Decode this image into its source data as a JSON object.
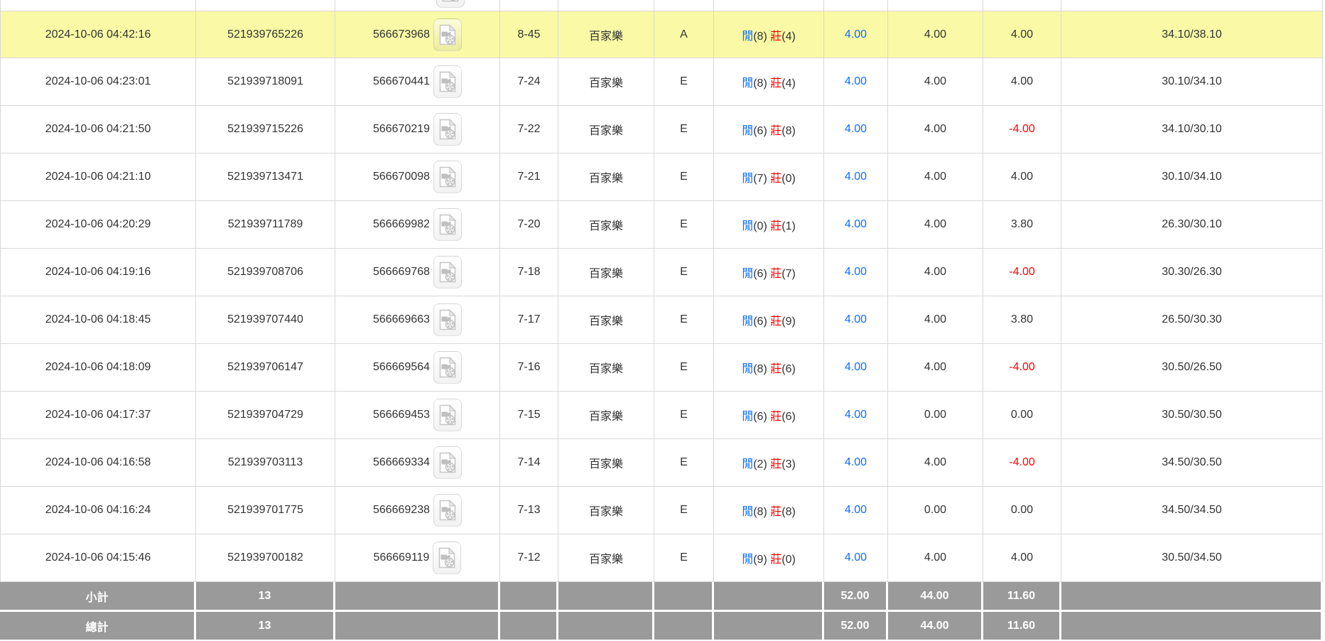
{
  "colors": {
    "highlight_row": "#f9f9a6",
    "summary_bg": "#9a9a9a",
    "row_border": "#d9d9d9",
    "link_blue": "#0d6efd",
    "player_blue": "#0d6efd",
    "banker_red": "#ff0000",
    "negative_red": "#ff0000",
    "text": "#333333"
  },
  "icons": {
    "row_action": "video-file-icon"
  },
  "table": {
    "result_labels": {
      "player": "閒",
      "banker": "莊"
    },
    "game_name": "百家樂",
    "rows": [
      {
        "time": "2024-10-06 04:42:16",
        "bet_id": "521939765226",
        "game_id": "566673968",
        "round": "8-45",
        "game": "百家樂",
        "table_code": "A",
        "player_score": "8",
        "banker_score": "4",
        "bet": "4.00",
        "valid": "4.00",
        "win_loss": "4.00",
        "balance": "34.10/38.10",
        "highlighted": true
      },
      {
        "time": "2024-10-06 04:23:01",
        "bet_id": "521939718091",
        "game_id": "566670441",
        "round": "7-24",
        "game": "百家樂",
        "table_code": "E",
        "player_score": "8",
        "banker_score": "4",
        "bet": "4.00",
        "valid": "4.00",
        "win_loss": "4.00",
        "balance": "30.10/34.10",
        "highlighted": false
      },
      {
        "time": "2024-10-06 04:21:50",
        "bet_id": "521939715226",
        "game_id": "566670219",
        "round": "7-22",
        "game": "百家樂",
        "table_code": "E",
        "player_score": "6",
        "banker_score": "8",
        "bet": "4.00",
        "valid": "4.00",
        "win_loss": "-4.00",
        "balance": "34.10/30.10",
        "highlighted": false
      },
      {
        "time": "2024-10-06 04:21:10",
        "bet_id": "521939713471",
        "game_id": "566670098",
        "round": "7-21",
        "game": "百家樂",
        "table_code": "E",
        "player_score": "7",
        "banker_score": "0",
        "bet": "4.00",
        "valid": "4.00",
        "win_loss": "4.00",
        "balance": "30.10/34.10",
        "highlighted": false
      },
      {
        "time": "2024-10-06 04:20:29",
        "bet_id": "521939711789",
        "game_id": "566669982",
        "round": "7-20",
        "game": "百家樂",
        "table_code": "E",
        "player_score": "0",
        "banker_score": "1",
        "bet": "4.00",
        "valid": "4.00",
        "win_loss": "3.80",
        "balance": "26.30/30.10",
        "highlighted": false
      },
      {
        "time": "2024-10-06 04:19:16",
        "bet_id": "521939708706",
        "game_id": "566669768",
        "round": "7-18",
        "game": "百家樂",
        "table_code": "E",
        "player_score": "6",
        "banker_score": "7",
        "bet": "4.00",
        "valid": "4.00",
        "win_loss": "-4.00",
        "balance": "30.30/26.30",
        "highlighted": false
      },
      {
        "time": "2024-10-06 04:18:45",
        "bet_id": "521939707440",
        "game_id": "566669663",
        "round": "7-17",
        "game": "百家樂",
        "table_code": "E",
        "player_score": "6",
        "banker_score": "9",
        "bet": "4.00",
        "valid": "4.00",
        "win_loss": "3.80",
        "balance": "26.50/30.30",
        "highlighted": false
      },
      {
        "time": "2024-10-06 04:18:09",
        "bet_id": "521939706147",
        "game_id": "566669564",
        "round": "7-16",
        "game": "百家樂",
        "table_code": "E",
        "player_score": "8",
        "banker_score": "6",
        "bet": "4.00",
        "valid": "4.00",
        "win_loss": "-4.00",
        "balance": "30.50/26.50",
        "highlighted": false
      },
      {
        "time": "2024-10-06 04:17:37",
        "bet_id": "521939704729",
        "game_id": "566669453",
        "round": "7-15",
        "game": "百家樂",
        "table_code": "E",
        "player_score": "6",
        "banker_score": "6",
        "bet": "4.00",
        "valid": "0.00",
        "win_loss": "0.00",
        "balance": "30.50/30.50",
        "highlighted": false
      },
      {
        "time": "2024-10-06 04:16:58",
        "bet_id": "521939703113",
        "game_id": "566669334",
        "round": "7-14",
        "game": "百家樂",
        "table_code": "E",
        "player_score": "2",
        "banker_score": "3",
        "bet": "4.00",
        "valid": "4.00",
        "win_loss": "-4.00",
        "balance": "34.50/30.50",
        "highlighted": false
      },
      {
        "time": "2024-10-06 04:16:24",
        "bet_id": "521939701775",
        "game_id": "566669238",
        "round": "7-13",
        "game": "百家樂",
        "table_code": "E",
        "player_score": "8",
        "banker_score": "8",
        "bet": "4.00",
        "valid": "0.00",
        "win_loss": "0.00",
        "balance": "34.50/34.50",
        "highlighted": false
      },
      {
        "time": "2024-10-06 04:15:46",
        "bet_id": "521939700182",
        "game_id": "566669119",
        "round": "7-12",
        "game": "百家樂",
        "table_code": "E",
        "player_score": "9",
        "banker_score": "0",
        "bet": "4.00",
        "valid": "4.00",
        "win_loss": "4.00",
        "balance": "30.50/34.50",
        "highlighted": false
      }
    ],
    "subtotal": {
      "label": "小計",
      "count": "13",
      "bet_total": "52.00",
      "valid_total": "44.00",
      "win_loss_total": "11.60"
    },
    "total": {
      "label": "總計",
      "count": "13",
      "bet_total": "52.00",
      "valid_total": "44.00",
      "win_loss_total": "11.60"
    }
  }
}
